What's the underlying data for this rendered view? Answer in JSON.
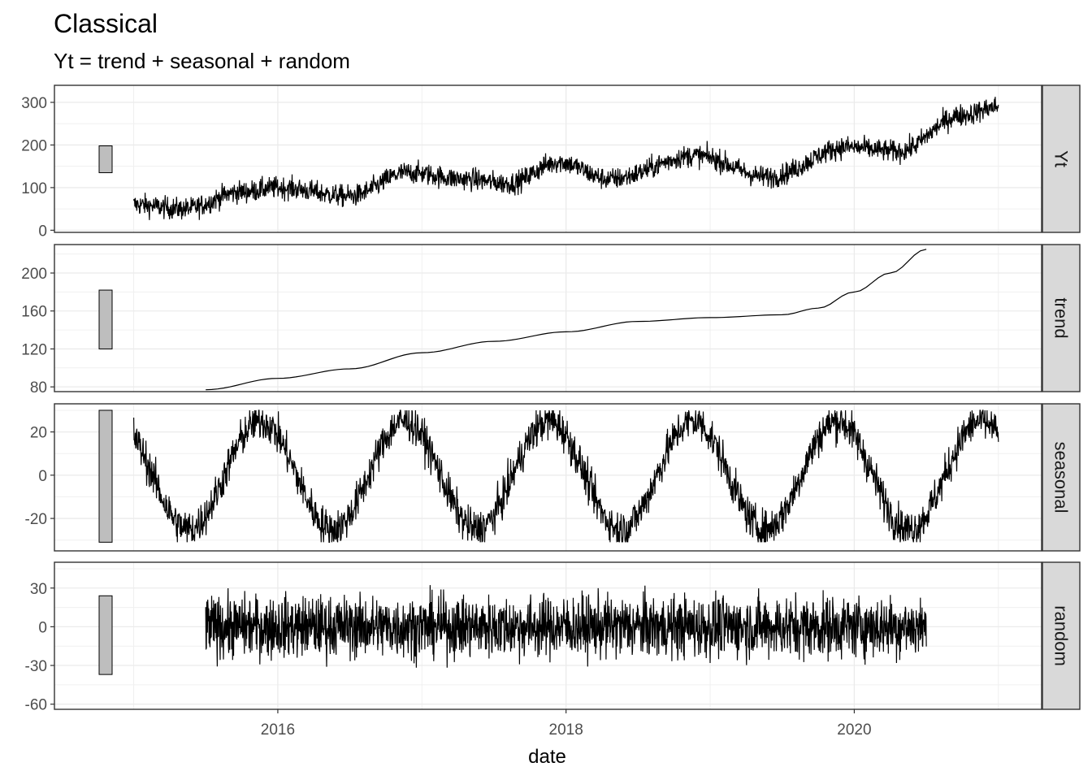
{
  "chart_data": {
    "type": "line",
    "title": "Classical",
    "subtitle": "Yt = trend + seasonal + random",
    "xlabel": "date",
    "x_ticks": [
      "2016",
      "2018",
      "2020"
    ],
    "x_tick_values": [
      2016,
      2018,
      2020
    ],
    "x_range": [
      2014.45,
      2021.3
    ],
    "grid": true,
    "theme": "bw",
    "series_color": "#000000",
    "range_bar_color": "#bebebe",
    "strip_color": "#d9d9d9",
    "panels": [
      {
        "name": "Yt",
        "ylim": [
          -5,
          340
        ],
        "yticks": [
          0,
          100,
          200,
          300
        ],
        "range_bar": [
          135,
          198
        ],
        "noise": 13,
        "x_start": 2015.0,
        "x_end": 2021.0,
        "level_points": [
          [
            2015.0,
            60
          ],
          [
            2015.35,
            50
          ],
          [
            2015.75,
            90
          ],
          [
            2016.0,
            100
          ],
          [
            2016.5,
            80
          ],
          [
            2016.9,
            135
          ],
          [
            2017.3,
            120
          ],
          [
            2017.6,
            110
          ],
          [
            2017.95,
            160
          ],
          [
            2018.3,
            120
          ],
          [
            2018.9,
            175
          ],
          [
            2019.4,
            125
          ],
          [
            2019.95,
            195
          ],
          [
            2020.3,
            185
          ],
          [
            2020.75,
            270
          ],
          [
            2021.0,
            290
          ]
        ]
      },
      {
        "name": "trend",
        "ylim": [
          75,
          230
        ],
        "yticks": [
          80,
          120,
          160,
          200
        ],
        "range_bar": [
          120,
          182
        ],
        "noise": 0,
        "x_start": 2015.5,
        "x_end": 2020.5,
        "level_points": [
          [
            2015.5,
            77
          ],
          [
            2016.0,
            89
          ],
          [
            2016.5,
            99
          ],
          [
            2017.0,
            116
          ],
          [
            2017.5,
            128
          ],
          [
            2018.0,
            138
          ],
          [
            2018.5,
            149
          ],
          [
            2019.0,
            153
          ],
          [
            2019.5,
            156
          ],
          [
            2019.75,
            163
          ],
          [
            2020.0,
            180
          ],
          [
            2020.25,
            200
          ],
          [
            2020.5,
            225
          ]
        ]
      },
      {
        "name": "seasonal",
        "ylim": [
          -35,
          33
        ],
        "yticks": [
          -20,
          0,
          20
        ],
        "range_bar": [
          -31,
          30
        ],
        "noise": 4.5,
        "x_start": 2015.0,
        "x_end": 2021.0,
        "seasonal_amplitude": 25,
        "level_points": []
      },
      {
        "name": "random",
        "ylim": [
          -64,
          50
        ],
        "yticks": [
          -60,
          -30,
          0,
          30
        ],
        "range_bar": [
          -37,
          24
        ],
        "noise": 12,
        "x_start": 2015.5,
        "x_end": 2020.5,
        "level_points": [
          [
            2015.5,
            0
          ],
          [
            2020.5,
            0
          ]
        ]
      }
    ]
  }
}
